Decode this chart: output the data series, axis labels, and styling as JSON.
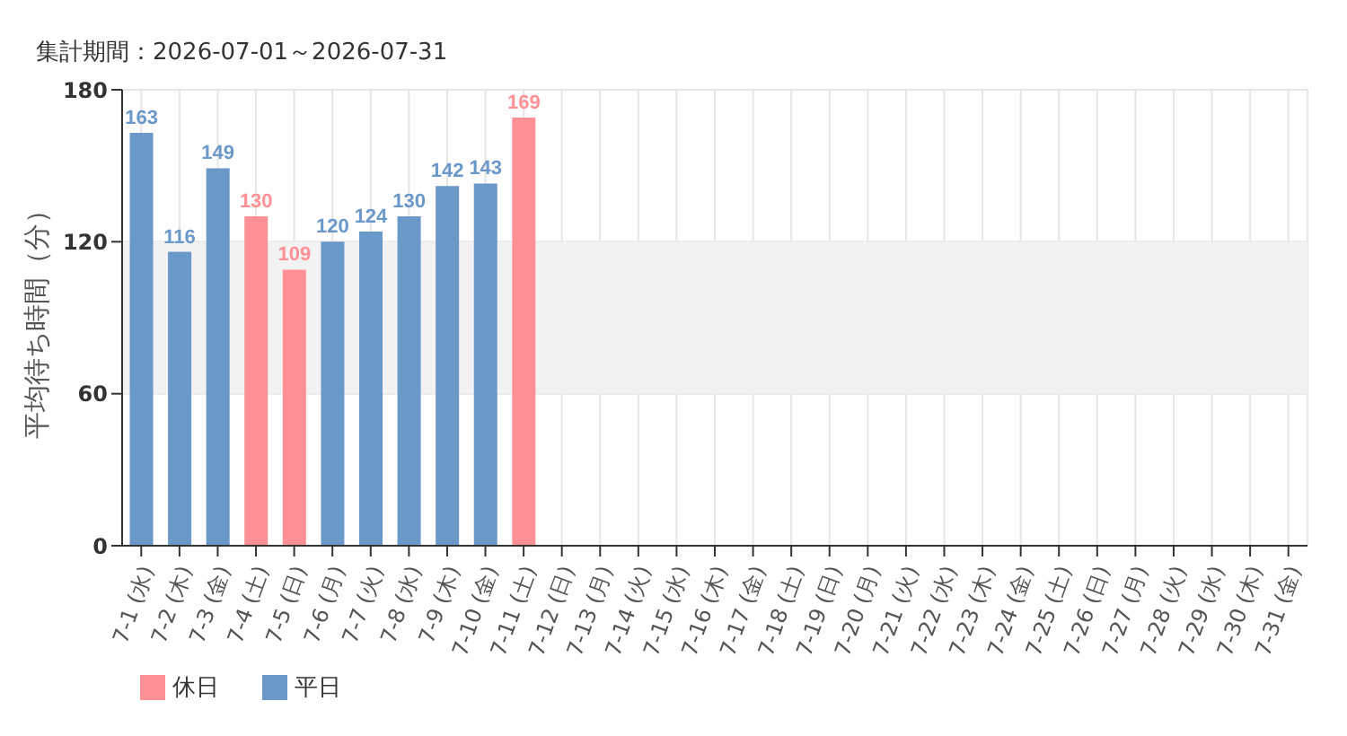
{
  "chart_data": {
    "type": "bar",
    "title": "集計期間：2026-07-01～2026-07-31",
    "ylabel": "平均待ち時間（分）",
    "categories": [
      "7-1 (水)",
      "7-2 (木)",
      "7-3 (金)",
      "7-4 (土)",
      "7-5 (日)",
      "7-6 (月)",
      "7-7 (火)",
      "7-8 (水)",
      "7-9 (木)",
      "7-10 (金)",
      "7-11 (土)",
      "7-12 (日)",
      "7-13 (月)",
      "7-14 (火)",
      "7-15 (水)",
      "7-16 (木)",
      "7-17 (金)",
      "7-18 (土)",
      "7-19 (日)",
      "7-20 (月)",
      "7-21 (火)",
      "7-22 (水)",
      "7-23 (木)",
      "7-24 (金)",
      "7-25 (土)",
      "7-26 (日)",
      "7-27 (月)",
      "7-28 (火)",
      "7-29 (水)",
      "7-30 (木)",
      "7-31 (金)"
    ],
    "series": [
      {
        "name": "平日",
        "color": "#6a98c8",
        "values": [
          163,
          116,
          149,
          null,
          null,
          120,
          124,
          130,
          142,
          143,
          null,
          null,
          null,
          null,
          null,
          null,
          null,
          null,
          null,
          null,
          null,
          null,
          null,
          null,
          null,
          null,
          null,
          null,
          null,
          null,
          null
        ]
      },
      {
        "name": "休日",
        "color": "#ff9095",
        "values": [
          null,
          null,
          null,
          130,
          109,
          null,
          null,
          null,
          null,
          null,
          169,
          null,
          null,
          null,
          null,
          null,
          null,
          null,
          null,
          null,
          null,
          null,
          null,
          null,
          null,
          null,
          null,
          null,
          null,
          null,
          null
        ]
      }
    ],
    "stacked": true,
    "ylim": [
      0,
      180
    ],
    "yticks": [
      0,
      60,
      120,
      180
    ],
    "grid": true,
    "legend": "bottom left",
    "data_labels": true,
    "bands": [
      {
        "axis": "y",
        "from": 60,
        "to": 120,
        "color": "#f2f2f2"
      }
    ]
  }
}
